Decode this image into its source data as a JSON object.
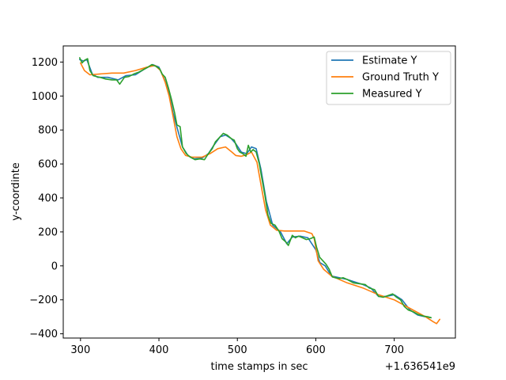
{
  "chart_data": {
    "type": "line",
    "title": "",
    "xlabel": "time stamps in sec",
    "ylabel": "y-coordinte",
    "x_offset_text": "+1.636541e9",
    "xlim": [
      278,
      778
    ],
    "ylim": [
      -425,
      1295
    ],
    "xticks": [
      300,
      400,
      500,
      600,
      700
    ],
    "yticks": [
      -400,
      -200,
      0,
      200,
      400,
      600,
      800,
      1000,
      1200
    ],
    "grid": false,
    "legend_position": "upper right",
    "series": [
      {
        "name": "Estimate Y",
        "color": "#1f77b4",
        "points": [
          [
            299,
            1215
          ],
          [
            304,
            1205
          ],
          [
            308,
            1215
          ],
          [
            315,
            1130
          ],
          [
            322,
            1110
          ],
          [
            335,
            1110
          ],
          [
            348,
            1095
          ],
          [
            358,
            1120
          ],
          [
            370,
            1125
          ],
          [
            382,
            1160
          ],
          [
            392,
            1185
          ],
          [
            400,
            1170
          ],
          [
            405,
            1120
          ],
          [
            412,
            1040
          ],
          [
            418,
            900
          ],
          [
            424,
            800
          ],
          [
            430,
            700
          ],
          [
            437,
            650
          ],
          [
            445,
            630
          ],
          [
            455,
            635
          ],
          [
            463,
            660
          ],
          [
            470,
            710
          ],
          [
            478,
            760
          ],
          [
            485,
            770
          ],
          [
            492,
            750
          ],
          [
            498,
            720
          ],
          [
            505,
            670
          ],
          [
            512,
            660
          ],
          [
            518,
            700
          ],
          [
            524,
            690
          ],
          [
            530,
            570
          ],
          [
            537,
            380
          ],
          [
            545,
            240
          ],
          [
            555,
            200
          ],
          [
            563,
            130
          ],
          [
            570,
            170
          ],
          [
            580,
            175
          ],
          [
            590,
            165
          ],
          [
            600,
            95
          ],
          [
            605,
            20
          ],
          [
            612,
            0
          ],
          [
            620,
            -60
          ],
          [
            630,
            -70
          ],
          [
            640,
            -80
          ],
          [
            650,
            -95
          ],
          [
            660,
            -110
          ],
          [
            670,
            -130
          ],
          [
            680,
            -180
          ],
          [
            690,
            -180
          ],
          [
            700,
            -170
          ],
          [
            710,
            -200
          ],
          [
            720,
            -260
          ],
          [
            730,
            -290
          ],
          [
            740,
            -300
          ],
          [
            747,
            -305
          ]
        ]
      },
      {
        "name": "Ground Truth Y",
        "color": "#ff7f0e",
        "points": [
          [
            300,
            1195
          ],
          [
            305,
            1150
          ],
          [
            312,
            1125
          ],
          [
            325,
            1130
          ],
          [
            340,
            1135
          ],
          [
            355,
            1135
          ],
          [
            370,
            1150
          ],
          [
            385,
            1170
          ],
          [
            395,
            1180
          ],
          [
            402,
            1150
          ],
          [
            408,
            1080
          ],
          [
            413,
            1000
          ],
          [
            418,
            880
          ],
          [
            423,
            760
          ],
          [
            428,
            690
          ],
          [
            434,
            650
          ],
          [
            442,
            640
          ],
          [
            455,
            640
          ],
          [
            465,
            660
          ],
          [
            475,
            690
          ],
          [
            485,
            700
          ],
          [
            493,
            670
          ],
          [
            498,
            650
          ],
          [
            505,
            645
          ],
          [
            512,
            655
          ],
          [
            518,
            670
          ],
          [
            525,
            610
          ],
          [
            530,
            480
          ],
          [
            536,
            330
          ],
          [
            542,
            240
          ],
          [
            550,
            210
          ],
          [
            560,
            205
          ],
          [
            575,
            205
          ],
          [
            585,
            205
          ],
          [
            595,
            190
          ],
          [
            598,
            160
          ],
          [
            603,
            30
          ],
          [
            610,
            -20
          ],
          [
            620,
            -60
          ],
          [
            640,
            -100
          ],
          [
            660,
            -130
          ],
          [
            680,
            -170
          ],
          [
            700,
            -200
          ],
          [
            720,
            -250
          ],
          [
            740,
            -300
          ],
          [
            750,
            -330
          ],
          [
            754,
            -340
          ],
          [
            758,
            -315
          ]
        ]
      },
      {
        "name": "Measured Y",
        "color": "#2ca02c",
        "points": [
          [
            299,
            1225
          ],
          [
            302,
            1195
          ],
          [
            305,
            1210
          ],
          [
            309,
            1220
          ],
          [
            312,
            1150
          ],
          [
            316,
            1120
          ],
          [
            320,
            1115
          ],
          [
            325,
            1110
          ],
          [
            332,
            1100
          ],
          [
            340,
            1095
          ],
          [
            346,
            1095
          ],
          [
            350,
            1070
          ],
          [
            356,
            1110
          ],
          [
            362,
            1115
          ],
          [
            368,
            1130
          ],
          [
            374,
            1140
          ],
          [
            380,
            1155
          ],
          [
            386,
            1170
          ],
          [
            391,
            1185
          ],
          [
            396,
            1175
          ],
          [
            401,
            1160
          ],
          [
            404,
            1130
          ],
          [
            408,
            1110
          ],
          [
            412,
            1050
          ],
          [
            416,
            980
          ],
          [
            420,
            900
          ],
          [
            423,
            830
          ],
          [
            427,
            820
          ],
          [
            430,
            700
          ],
          [
            435,
            660
          ],
          [
            440,
            640
          ],
          [
            446,
            625
          ],
          [
            452,
            630
          ],
          [
            458,
            625
          ],
          [
            463,
            660
          ],
          [
            468,
            690
          ],
          [
            472,
            730
          ],
          [
            478,
            760
          ],
          [
            482,
            780
          ],
          [
            487,
            770
          ],
          [
            492,
            750
          ],
          [
            496,
            740
          ],
          [
            500,
            690
          ],
          [
            503,
            670
          ],
          [
            507,
            660
          ],
          [
            511,
            645
          ],
          [
            514,
            710
          ],
          [
            517,
            670
          ],
          [
            520,
            685
          ],
          [
            524,
            670
          ],
          [
            528,
            600
          ],
          [
            531,
            520
          ],
          [
            535,
            420
          ],
          [
            539,
            300
          ],
          [
            543,
            250
          ],
          [
            548,
            240
          ],
          [
            553,
            205
          ],
          [
            557,
            160
          ],
          [
            562,
            140
          ],
          [
            565,
            120
          ],
          [
            570,
            180
          ],
          [
            574,
            165
          ],
          [
            578,
            175
          ],
          [
            583,
            165
          ],
          [
            588,
            155
          ],
          [
            593,
            160
          ],
          [
            598,
            170
          ],
          [
            601,
            110
          ],
          [
            605,
            50
          ],
          [
            609,
            30
          ],
          [
            613,
            10
          ],
          [
            617,
            -20
          ],
          [
            621,
            -65
          ],
          [
            625,
            -70
          ],
          [
            630,
            -75
          ],
          [
            635,
            -70
          ],
          [
            640,
            -80
          ],
          [
            648,
            -100
          ],
          [
            655,
            -105
          ],
          [
            663,
            -110
          ],
          [
            668,
            -130
          ],
          [
            675,
            -140
          ],
          [
            680,
            -180
          ],
          [
            686,
            -185
          ],
          [
            692,
            -175
          ],
          [
            698,
            -165
          ],
          [
            703,
            -185
          ],
          [
            708,
            -200
          ],
          [
            713,
            -240
          ],
          [
            718,
            -260
          ],
          [
            724,
            -270
          ],
          [
            730,
            -285
          ],
          [
            737,
            -295
          ],
          [
            743,
            -300
          ],
          [
            747,
            -305
          ]
        ]
      }
    ]
  }
}
